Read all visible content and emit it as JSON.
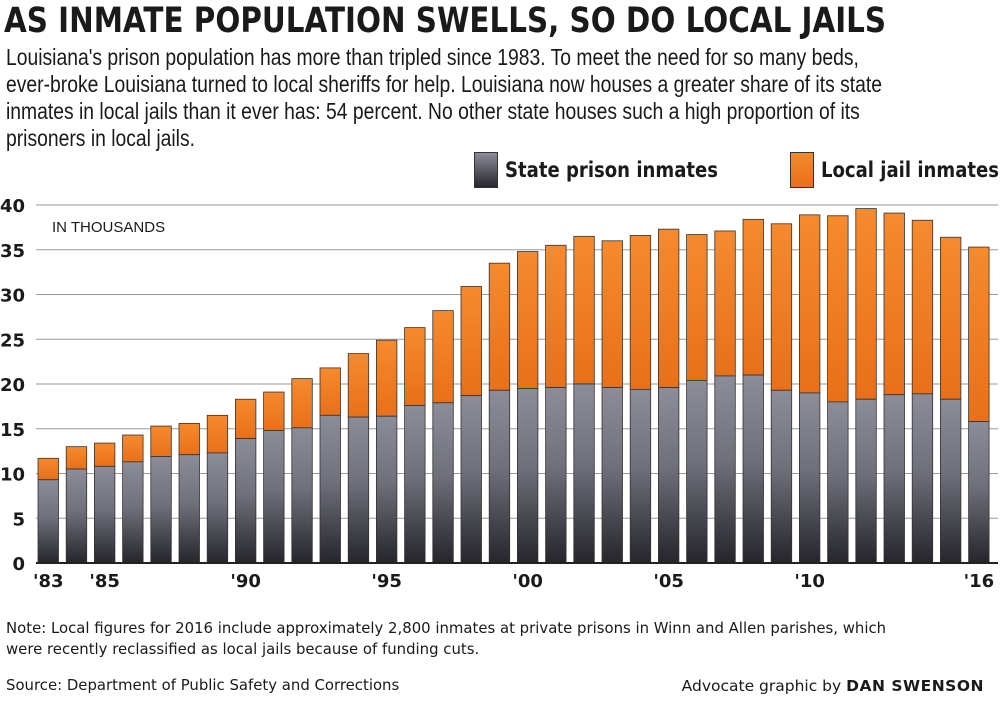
{
  "headline": "AS INMATE POPULATION SWELLS, SO DO LOCAL JAILS",
  "intro_lines": [
    "Louisiana's prison population has more than tripled since 1983. To meet the need for so many beds,",
    "ever-broke Louisiana turned to local sheriffs for help. Louisiana now houses a greater share of its state",
    "inmates in local jails than it ever has: 54 percent. No other state houses such a high proportion of its",
    "prisoners in local jails."
  ],
  "note_lines": [
    "Note: Local figures for 2016 include approximately 2,800 inmates at private prisons in Winn and Allen parishes, which",
    "were recently reclassified as local jails because of funding cuts."
  ],
  "source": "Source: Department of Public Safety and Corrections",
  "credit": {
    "prefix": "Advocate graphic by",
    "name": "DAN SWENSON"
  },
  "colors": {
    "state_top": "#8c8d99",
    "state_bottom": "#25252b",
    "local_top": "#f58a2e",
    "local_bottom": "#e8701a",
    "grid": "#9a9a9a",
    "axis": "#222222"
  },
  "chart_data": {
    "type": "bar",
    "stacked": true,
    "unit_label": "IN THOUSANDS",
    "ylim": [
      0,
      40
    ],
    "yticks": [
      0,
      5,
      10,
      15,
      20,
      25,
      30,
      35,
      40
    ],
    "grid": true,
    "legend_position": "top-right",
    "categories": [
      1983,
      1984,
      1985,
      1986,
      1987,
      1988,
      1989,
      1990,
      1991,
      1992,
      1993,
      1994,
      1995,
      1996,
      1997,
      1998,
      1999,
      2000,
      2001,
      2002,
      2003,
      2004,
      2005,
      2006,
      2007,
      2008,
      2009,
      2010,
      2011,
      2012,
      2013,
      2014,
      2015,
      2016
    ],
    "tick_labels": [
      {
        "year": 1983,
        "label": "'83"
      },
      {
        "year": 1985,
        "label": "'85"
      },
      {
        "year": 1990,
        "label": "'90"
      },
      {
        "year": 1995,
        "label": "'95"
      },
      {
        "year": 2000,
        "label": "'00"
      },
      {
        "year": 2005,
        "label": "'05"
      },
      {
        "year": 2010,
        "label": "'10"
      },
      {
        "year": 2016,
        "label": "'16"
      }
    ],
    "series": [
      {
        "name": "State prison inmates",
        "values": [
          9.3,
          10.5,
          10.8,
          11.3,
          11.9,
          12.1,
          12.3,
          13.9,
          14.8,
          15.1,
          16.5,
          16.3,
          16.4,
          17.6,
          17.9,
          18.7,
          19.3,
          19.5,
          19.6,
          20.0,
          19.6,
          19.4,
          19.6,
          20.4,
          20.9,
          21.0,
          19.3,
          19.0,
          18.0,
          18.3,
          18.8,
          18.9,
          18.3,
          15.8
        ]
      },
      {
        "name": "Local jail inmates",
        "values": [
          2.4,
          2.5,
          2.6,
          3.0,
          3.4,
          3.5,
          4.2,
          4.4,
          4.3,
          5.5,
          5.3,
          7.1,
          8.5,
          8.7,
          10.3,
          12.2,
          14.2,
          15.3,
          15.9,
          16.5,
          16.4,
          17.2,
          17.7,
          16.3,
          16.2,
          17.4,
          18.6,
          19.9,
          20.8,
          21.3,
          20.3,
          19.4,
          18.1,
          19.5
        ]
      }
    ]
  }
}
